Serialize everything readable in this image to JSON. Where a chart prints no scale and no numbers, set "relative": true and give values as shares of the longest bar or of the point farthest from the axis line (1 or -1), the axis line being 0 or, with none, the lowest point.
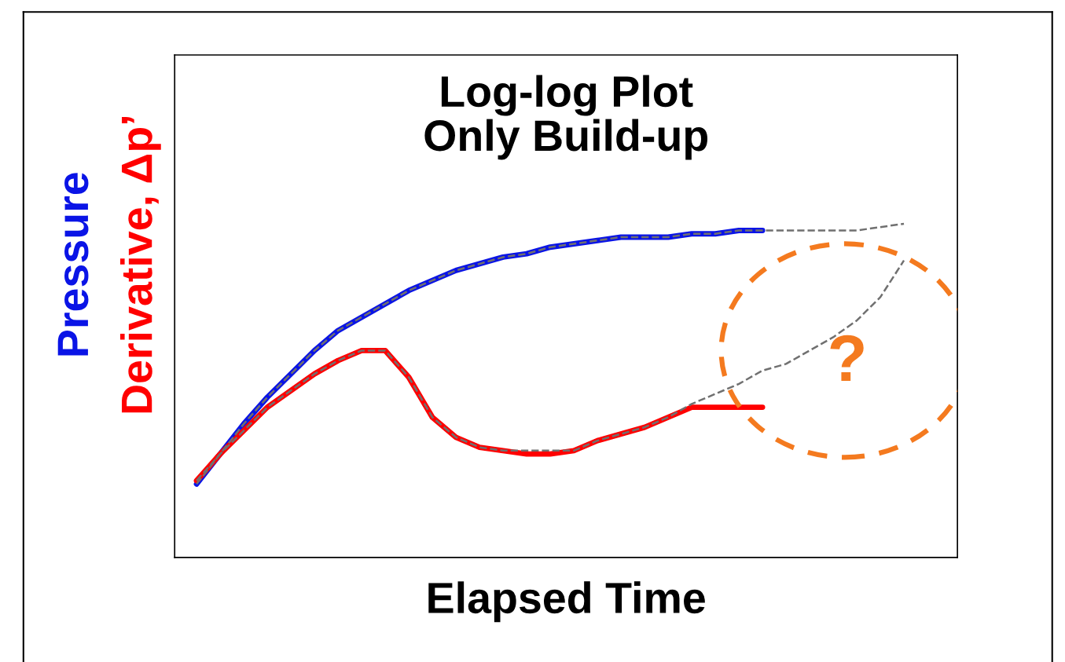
{
  "chart_data": {
    "type": "line",
    "title": "Log-log Plot\nOnly Build-up",
    "xlabel": "Elapsed Time",
    "relative": true,
    "legend": false,
    "categories": [
      null,
      null,
      null,
      null,
      null,
      null,
      null,
      null,
      null,
      null,
      null,
      null,
      null,
      null,
      null,
      null,
      null,
      null,
      null,
      null,
      null,
      null,
      null,
      null,
      null,
      null,
      null,
      null,
      null,
      null,
      null
    ],
    "series": [
      {
        "name": "Pressure",
        "color": "#0a14e6",
        "line_style": "solid",
        "values": [
          0.22,
          0.31,
          0.4,
          0.48,
          0.55,
          0.62,
          0.68,
          0.72,
          0.76,
          0.8,
          0.83,
          0.86,
          0.88,
          0.9,
          0.91,
          0.93,
          0.94,
          0.95,
          0.96,
          0.96,
          0.96,
          0.97,
          0.97,
          0.98,
          0.98,
          null,
          null,
          null,
          null,
          null,
          null
        ]
      },
      {
        "name": "Derivative, Δp’",
        "color": "#ff0000",
        "line_style": "solid",
        "values": [
          0.23,
          0.31,
          0.38,
          0.45,
          0.5,
          0.55,
          0.59,
          0.62,
          0.62,
          0.54,
          0.42,
          0.36,
          0.33,
          0.32,
          0.31,
          0.31,
          0.32,
          0.35,
          0.37,
          0.39,
          0.42,
          0.45,
          0.45,
          0.45,
          0.45,
          null,
          null,
          null,
          null,
          null,
          null
        ]
      },
      {
        "color": "#707070",
        "line_style": "dashed",
        "values": [
          0.22,
          0.31,
          0.4,
          0.48,
          0.55,
          0.62,
          0.68,
          0.72,
          0.76,
          0.8,
          0.83,
          0.86,
          0.88,
          0.9,
          0.91,
          0.93,
          0.94,
          0.95,
          0.96,
          0.96,
          0.96,
          0.97,
          0.97,
          0.98,
          0.98,
          0.98,
          0.98,
          0.98,
          0.98,
          0.99,
          1.0
        ]
      },
      {
        "color": "#707070",
        "line_style": "dashed",
        "values": [
          0.23,
          0.31,
          0.38,
          0.45,
          0.5,
          0.55,
          0.59,
          0.62,
          0.62,
          0.54,
          0.42,
          0.36,
          0.33,
          0.32,
          0.32,
          0.32,
          0.32,
          0.35,
          0.37,
          0.39,
          0.42,
          0.46,
          0.49,
          0.52,
          0.56,
          0.58,
          0.62,
          0.66,
          0.71,
          0.78,
          0.89
        ]
      }
    ],
    "annotations": [
      "?"
    ]
  }
}
